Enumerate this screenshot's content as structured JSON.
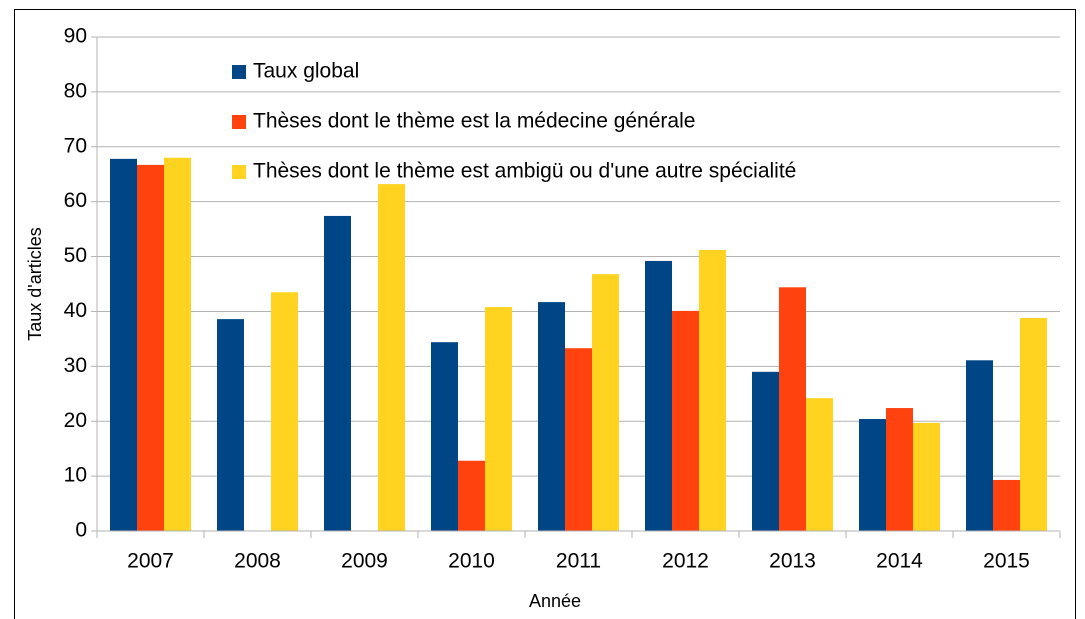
{
  "chart_data": {
    "type": "bar",
    "x_label": "Année",
    "y_label": "Taux d'articles",
    "categories": [
      "2007",
      "2008",
      "2009",
      "2010",
      "2011",
      "2012",
      "2013",
      "2014",
      "2015"
    ],
    "series": [
      {
        "name": "Taux global",
        "color": "#004586",
        "values": [
          67.8,
          38.6,
          57.4,
          34.4,
          41.7,
          49.2,
          29.0,
          20.4,
          31.1
        ]
      },
      {
        "name": "Thèses dont le thème est la médecine générale",
        "color": "#ff420e",
        "values": [
          66.7,
          null,
          null,
          12.8,
          33.3,
          40.1,
          44.4,
          22.4,
          9.3
        ]
      },
      {
        "name": "Thèses dont le thème est ambigü ou d'une autre spécialité",
        "color": "#ffd320",
        "values": [
          68.0,
          43.5,
          63.2,
          40.8,
          46.8,
          51.2,
          24.2,
          19.7,
          38.8
        ]
      }
    ],
    "ylim": [
      0,
      90
    ],
    "yticks": [
      0,
      10,
      20,
      30,
      40,
      50,
      60,
      70,
      80,
      90
    ],
    "grid": true
  }
}
